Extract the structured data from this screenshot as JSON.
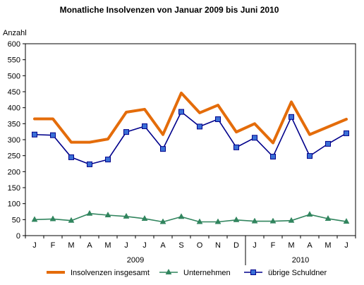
{
  "chart_data": {
    "type": "line",
    "title": "Monatliche Insolvenzen von Januar 2009 bis Juni 2010",
    "ylabel": "Anzahl",
    "xlabel": "",
    "ylim": [
      0,
      600
    ],
    "y_ticks": [
      0,
      50,
      100,
      150,
      200,
      250,
      300,
      350,
      400,
      450,
      500,
      550,
      600
    ],
    "grid": false,
    "legend_position": "bottom",
    "categories": [
      "J",
      "F",
      "M",
      "A",
      "M",
      "J",
      "J",
      "A",
      "S",
      "O",
      "N",
      "D",
      "J",
      "F",
      "M",
      "A",
      "M",
      "J"
    ],
    "year_groups": [
      {
        "label": "2009",
        "start": 0,
        "end": 11
      },
      {
        "label": "2010",
        "start": 12,
        "end": 17
      }
    ],
    "series": [
      {
        "name": "Insolvenzen insgesamt",
        "color": "#e46c0a",
        "marker": "none",
        "values": [
          365,
          365,
          292,
          292,
          302,
          386,
          395,
          316,
          446,
          384,
          408,
          324,
          350,
          290,
          418,
          316,
          340,
          364
        ]
      },
      {
        "name": "Unternehmen",
        "color": "#31855e",
        "marker": "triangle",
        "values": [
          50,
          52,
          47,
          69,
          64,
          60,
          53,
          43,
          59,
          43,
          43,
          49,
          45,
          45,
          47,
          66,
          53,
          44
        ]
      },
      {
        "name": "übrige Schuldner",
        "color": "#00008b",
        "marker_fill": "#3a6fd6",
        "marker": "square",
        "values": [
          316,
          314,
          245,
          223,
          238,
          324,
          342,
          271,
          387,
          341,
          364,
          276,
          306,
          247,
          371,
          249,
          287,
          320
        ]
      }
    ]
  }
}
